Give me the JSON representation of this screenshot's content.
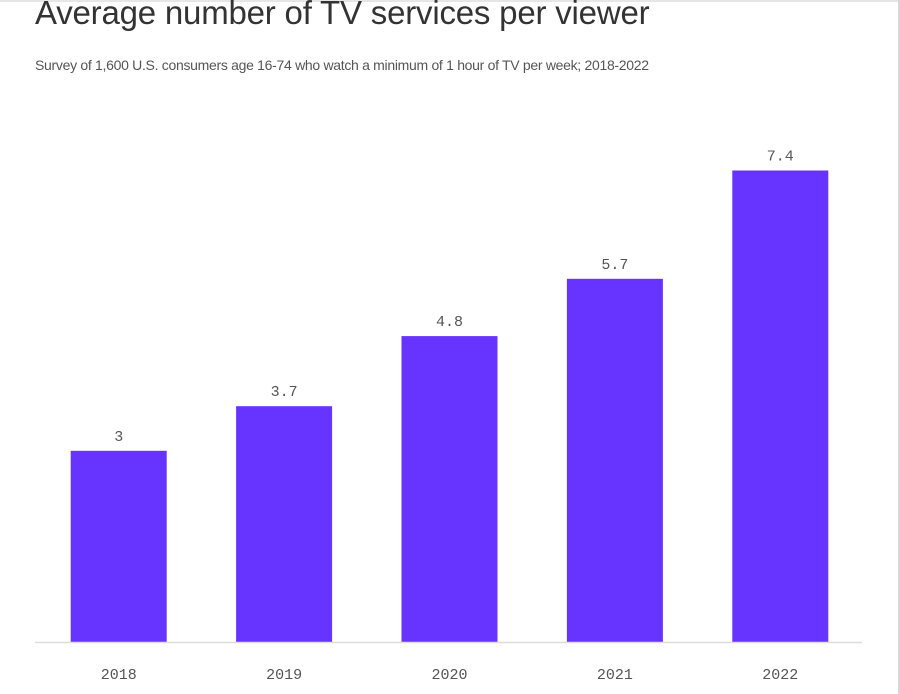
{
  "chart_data": {
    "type": "bar",
    "title": "Average number of TV services per viewer",
    "subtitle": "Survey of 1,600 U.S. consumers age 16-74 who watch a minimum of 1 hour of TV per week; 2018-2022",
    "categories": [
      "2018",
      "2019",
      "2020",
      "2021",
      "2022"
    ],
    "values": [
      3,
      3.7,
      4.8,
      5.7,
      7.4
    ],
    "value_labels": [
      "3",
      "3.7",
      "4.8",
      "5.7",
      "7.4"
    ],
    "ylim": [
      0,
      8.6
    ],
    "grid": false,
    "legend": "none"
  },
  "colors": {
    "bar": "#6633ff",
    "axis": "#dddddd",
    "text": "#333333",
    "label": "#555555"
  }
}
